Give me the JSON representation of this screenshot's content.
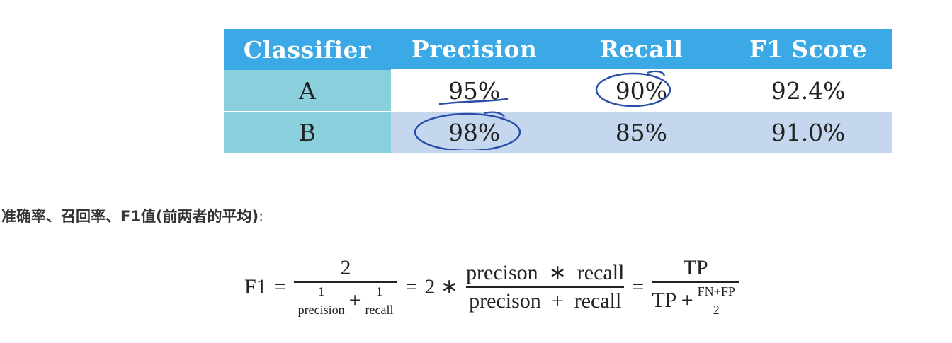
{
  "table": {
    "headers": [
      "Classifier",
      "Precision",
      "Recall",
      "F1 Score"
    ],
    "rows": [
      {
        "classifier": "A",
        "precision": "95%",
        "recall": "90%",
        "f1": "92.4%"
      },
      {
        "classifier": "B",
        "precision": "98%",
        "recall": "85%",
        "f1": "91.0%"
      }
    ],
    "colors": {
      "header": "#3aa9e6",
      "name_col": "#89cfdc",
      "row_b": "#c4d7ef",
      "annotation": "#2b4fa8"
    }
  },
  "heading": {
    "text": "准确率、召回率、F1值(前两者的平均)",
    "suffix": ":"
  },
  "formula": {
    "lhs": "F1",
    "eq": "=",
    "f1_num": "2",
    "inv_p_num": "1",
    "inv_p_den": "precision",
    "plus": "+",
    "inv_r_num": "1",
    "inv_r_den": "recall",
    "mult": "2 ∗",
    "f2_num": "precison  ∗  recall",
    "f2_den": "precison  +  recall",
    "f3_num": "TP",
    "f3_den_a": "TP +",
    "f3_den_num": "FN+FP",
    "f3_den_den": "2"
  }
}
